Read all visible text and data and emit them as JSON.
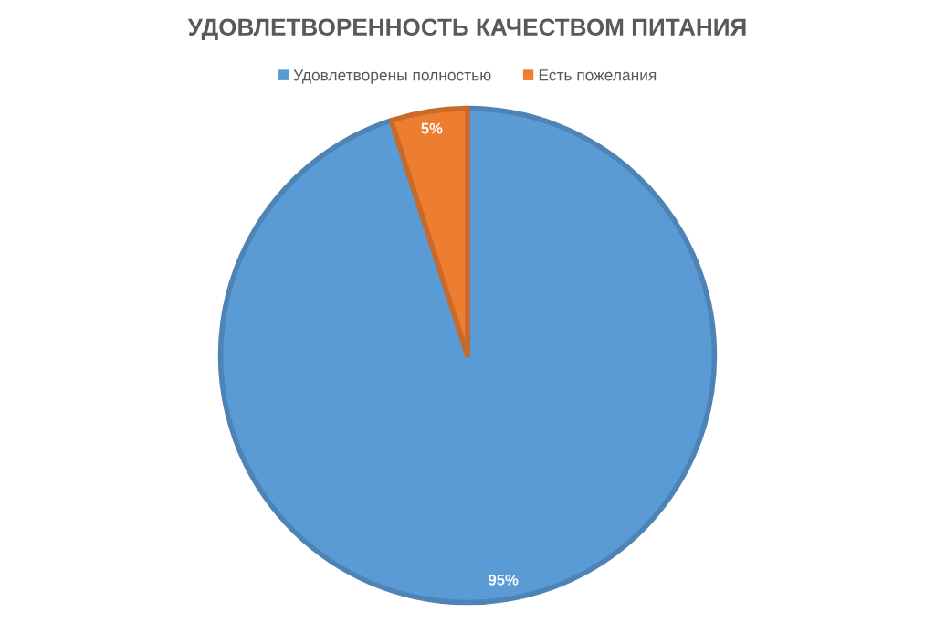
{
  "chart_data": {
    "type": "pie",
    "title": "УДОВЛЕТВОРЕННОСТЬ КАЧЕСТВОМ ПИТАНИЯ",
    "categories": [
      "Удовлетворены полностью",
      "Есть пожелания"
    ],
    "values": [
      95,
      5
    ],
    "colors": [
      "#5b9bd5",
      "#ed7d31"
    ],
    "value_labels": [
      "95%",
      "5%"
    ],
    "legend": "top"
  }
}
